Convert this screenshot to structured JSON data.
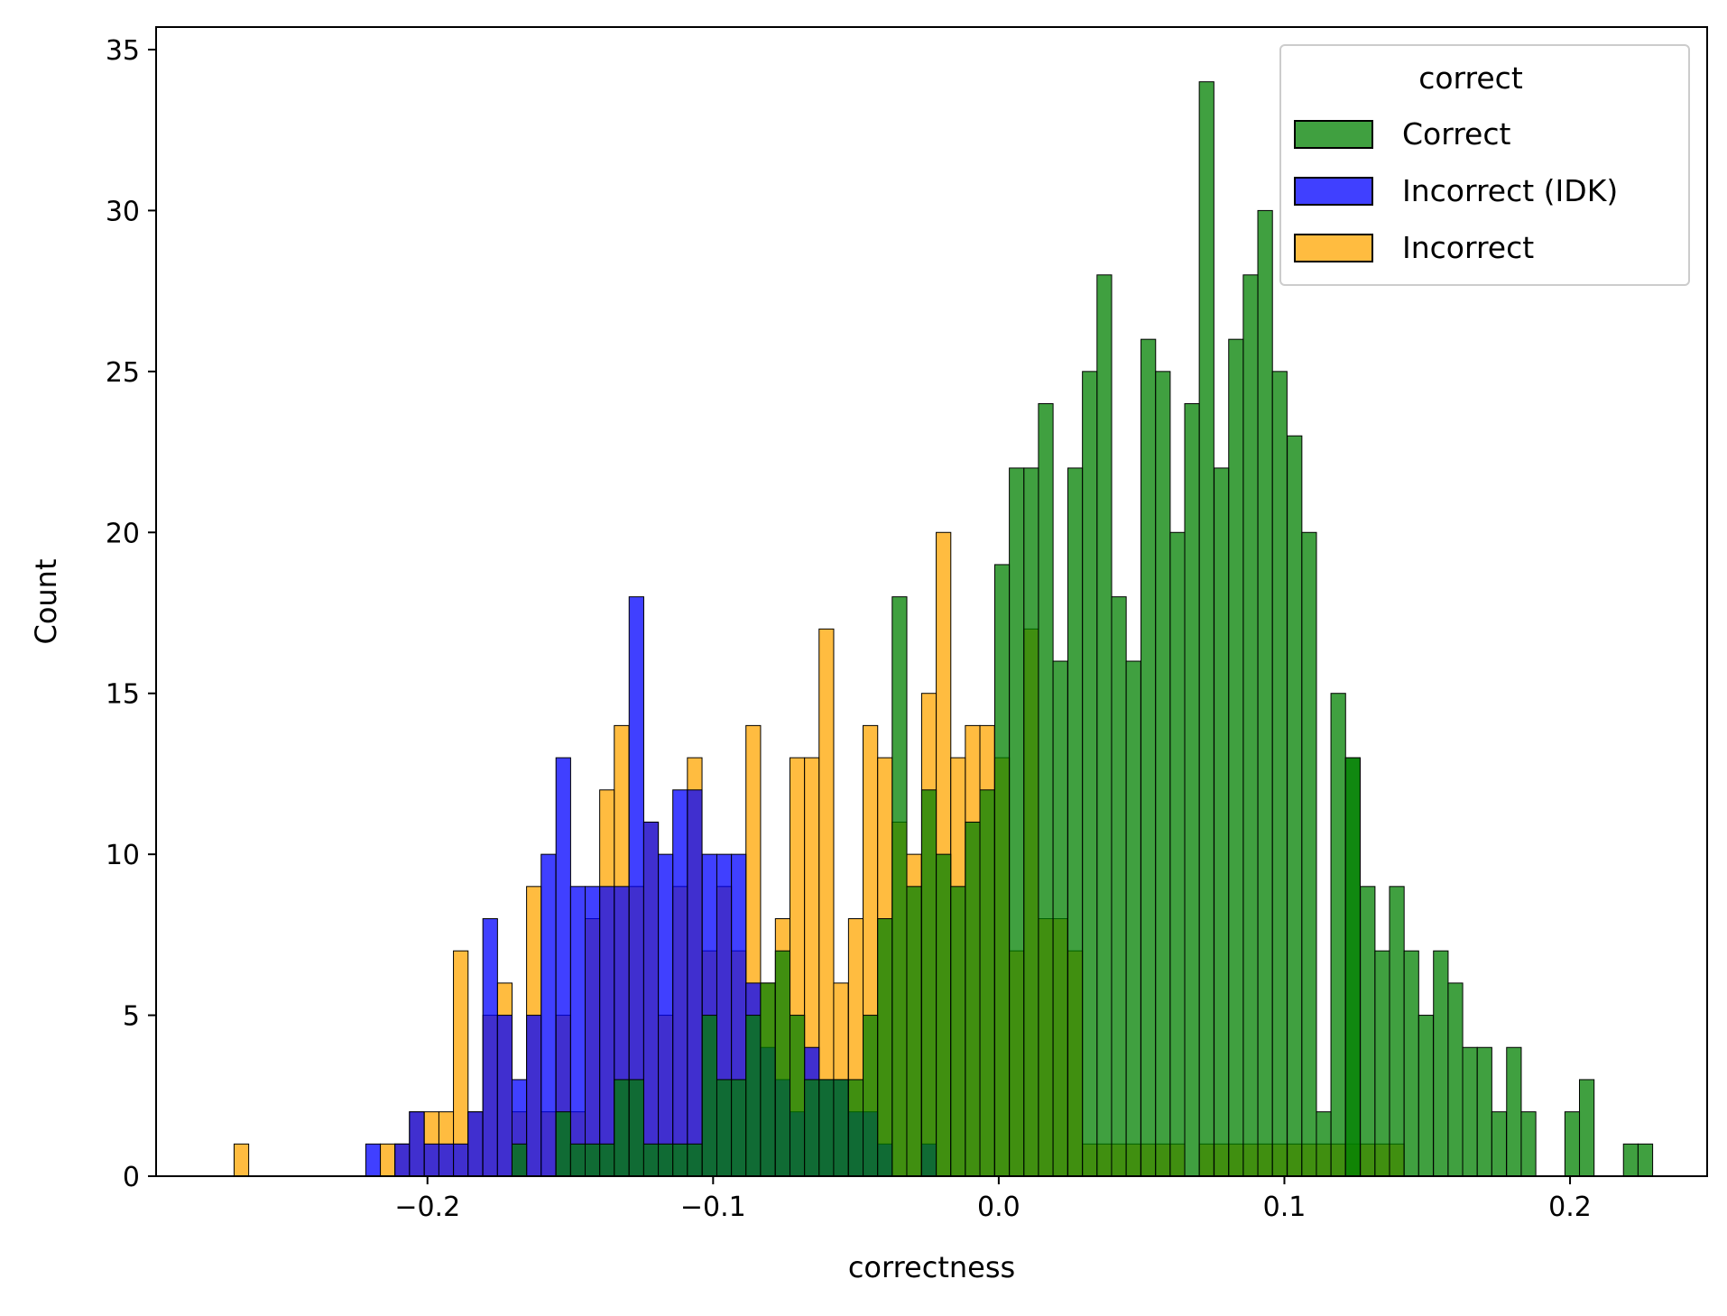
{
  "chart_data": {
    "type": "histogram",
    "xlabel": "correctness",
    "ylabel": "Count",
    "xlim": [
      -0.295,
      0.248
    ],
    "ylim": [
      0,
      35.7
    ],
    "bin_width": 0.00512,
    "x_ticks": [
      -0.2,
      -0.1,
      0.0,
      0.1,
      0.2
    ],
    "x_tick_labels": [
      "−0.2",
      "−0.1",
      "0.0",
      "0.1",
      "0.2"
    ],
    "y_ticks": [
      0,
      5,
      10,
      15,
      20,
      25,
      30,
      35
    ],
    "y_tick_labels": [
      "0",
      "5",
      "10",
      "15",
      "20",
      "25",
      "30",
      "35"
    ],
    "grid": false,
    "legend": {
      "title": "correct",
      "placement": "top-right",
      "entries": [
        "Correct",
        "Incorrect (IDK)",
        "Incorrect"
      ]
    },
    "series": [
      {
        "name": "Incorrect",
        "color": "#FFA500",
        "bin_starts": [
          -0.2677,
          -0.2165,
          -0.2114,
          -0.2063,
          -0.2011,
          -0.196,
          -0.1909,
          -0.1858,
          -0.1806,
          -0.1755,
          -0.1704,
          -0.1653,
          -0.1602,
          -0.155,
          -0.1499,
          -0.1448,
          -0.1397,
          -0.1346,
          -0.1294,
          -0.1243,
          -0.1192,
          -0.1141,
          -0.109,
          -0.1038,
          -0.0987,
          -0.0936,
          -0.0885,
          -0.0834,
          -0.0782,
          -0.0731,
          -0.068,
          -0.0629,
          -0.0578,
          -0.0526,
          -0.0475,
          -0.0424,
          -0.0373,
          -0.0322,
          -0.027,
          -0.0219,
          -0.0168,
          -0.0117,
          -0.0066,
          -0.0014,
          0.0037,
          0.0088,
          0.0139,
          0.019,
          0.0242,
          0.0293,
          0.0344,
          0.0395,
          0.0446,
          0.0498,
          0.0549,
          0.06,
          0.0651,
          0.0702,
          0.0754,
          0.0805,
          0.0856,
          0.0907,
          0.0958,
          0.101,
          0.1061,
          0.1112,
          0.1163,
          0.1214,
          0.1266,
          0.1317,
          0.1368,
          0.1419,
          0.147,
          0.1522,
          0.1573,
          0.1624,
          0.1675,
          0.1726,
          0.1778,
          0.1829
        ],
        "counts": [
          1,
          1,
          1,
          2,
          2,
          2,
          7,
          2,
          5,
          6,
          2,
          9,
          2,
          5,
          2,
          8,
          12,
          14,
          9,
          11,
          5,
          9,
          13,
          7,
          9,
          7,
          14,
          6,
          8,
          13,
          13,
          17,
          6,
          8,
          14,
          13,
          11,
          10,
          15,
          20,
          13,
          14,
          14,
          13,
          7,
          17,
          8,
          8,
          7,
          1,
          1,
          1,
          1,
          1,
          1,
          1,
          0,
          1,
          1,
          1,
          1,
          1,
          1,
          1,
          1,
          1,
          1,
          1,
          1,
          1,
          1,
          0,
          0,
          0,
          0,
          0,
          0,
          0,
          0,
          0
        ]
      },
      {
        "name": "Incorrect (IDK)",
        "color": "#0000FF",
        "bin_starts": [
          -0.2216,
          -0.2114,
          -0.2063,
          -0.2011,
          -0.196,
          -0.1909,
          -0.1858,
          -0.1806,
          -0.1755,
          -0.1704,
          -0.1653,
          -0.1602,
          -0.155,
          -0.1499,
          -0.1448,
          -0.1397,
          -0.1346,
          -0.1294,
          -0.1243,
          -0.1192,
          -0.1141,
          -0.109,
          -0.1038,
          -0.0987,
          -0.0936,
          -0.0885,
          -0.0834,
          -0.0782,
          -0.0731,
          -0.068,
          -0.0629,
          -0.0578,
          -0.0526,
          -0.0475,
          -0.0424,
          -0.0373,
          -0.0322,
          -0.027
        ],
        "counts": [
          1,
          1,
          2,
          1,
          1,
          1,
          2,
          8,
          5,
          3,
          5,
          10,
          13,
          9,
          9,
          9,
          9,
          18,
          11,
          10,
          12,
          12,
          10,
          10,
          10,
          6,
          4,
          3,
          2,
          4,
          3,
          3,
          2,
          2,
          1,
          0,
          0,
          1
        ]
      },
      {
        "name": "Correct",
        "color": "#008000",
        "bin_starts": [
          -0.1704,
          -0.155,
          -0.1499,
          -0.1448,
          -0.1397,
          -0.1346,
          -0.1294,
          -0.1243,
          -0.1192,
          -0.1141,
          -0.109,
          -0.1038,
          -0.0987,
          -0.0936,
          -0.0885,
          -0.0834,
          -0.0782,
          -0.0731,
          -0.068,
          -0.0629,
          -0.0578,
          -0.0526,
          -0.0475,
          -0.0424,
          -0.0373,
          -0.0322,
          -0.027,
          -0.0219,
          -0.0168,
          -0.0117,
          -0.0066,
          -0.0014,
          0.0037,
          0.0088,
          0.0139,
          0.019,
          0.0242,
          0.0293,
          0.0344,
          0.0395,
          0.0446,
          0.0498,
          0.0549,
          0.06,
          0.0651,
          0.0702,
          0.0754,
          0.0805,
          0.0856,
          0.0907,
          0.0958,
          0.101,
          0.1061,
          0.1112,
          0.1163,
          0.1214,
          0.1266,
          0.1317,
          0.1368,
          0.1419,
          0.147,
          0.1522,
          0.1573,
          0.1624,
          0.1675,
          0.1726,
          0.1778,
          0.1829,
          0.1982,
          0.2187
        ],
        "counts": [
          1,
          2,
          1,
          1,
          1,
          3,
          3,
          1,
          1,
          1,
          1,
          5,
          3,
          3,
          5,
          6,
          7,
          5,
          3,
          3,
          3,
          3,
          5,
          8,
          18,
          9,
          12,
          10,
          9,
          11,
          12,
          19,
          22,
          22,
          24,
          16,
          22,
          25,
          28,
          18,
          16,
          26,
          25,
          20,
          24,
          34,
          22,
          26,
          28,
          30,
          25,
          23,
          20,
          2,
          15,
          13,
          9,
          7,
          9,
          7,
          5,
          7,
          6,
          4,
          4,
          2,
          4,
          2,
          2,
          1
        ],
        "extra": {
          "0.1214": 13,
          "0.2033": 3,
          "0.2238": 1
        }
      }
    ]
  }
}
